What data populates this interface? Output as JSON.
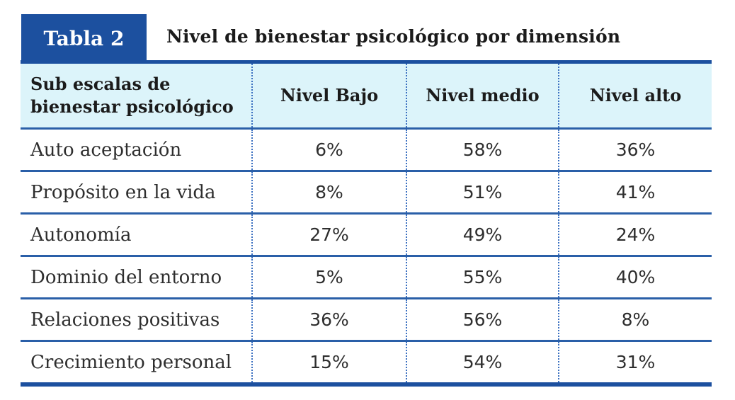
{
  "header": {
    "badge": "Tabla 2",
    "title": "Nivel de bienestar psicológico por dimensión"
  },
  "table": {
    "columns": {
      "label": "Sub escalas de bienestar psicológico",
      "low": "Nivel Bajo",
      "mid": "Nivel medio",
      "high": "Nivel alto"
    },
    "rows": [
      {
        "label": "Auto aceptación",
        "low": "6%",
        "mid": "58%",
        "high": "36%"
      },
      {
        "label": "Propósito en la vida",
        "low": "8%",
        "mid": "51%",
        "high": "41%"
      },
      {
        "label": "Autonomía",
        "low": "27%",
        "mid": "49%",
        "high": "24%"
      },
      {
        "label": "Dominio del entorno",
        "low": "5%",
        "mid": "55%",
        "high": "40%"
      },
      {
        "label": "Relaciones positivas",
        "low": "36%",
        "mid": "56%",
        "high": "8%"
      },
      {
        "label": "Crecimiento personal",
        "low": "15%",
        "mid": "54%",
        "high": "31%"
      }
    ]
  },
  "colors": {
    "accent_blue": "#1c509f",
    "row_line_blue": "#2a5fa8",
    "dotted_line_blue": "#3a6fc0",
    "header_bg": "#dcf4fa",
    "text_dark": "#1b1b1b"
  },
  "chart_data": {
    "type": "table",
    "title": "Nivel de bienestar psicológico por dimensión",
    "row_header": "Sub escalas de bienestar psicológico",
    "categories": [
      "Auto aceptación",
      "Propósito en la vida",
      "Autonomía",
      "Dominio del entorno",
      "Relaciones positivas",
      "Crecimiento personal"
    ],
    "series": [
      {
        "name": "Nivel Bajo",
        "values": [
          6,
          8,
          27,
          5,
          36,
          15
        ]
      },
      {
        "name": "Nivel medio",
        "values": [
          58,
          51,
          49,
          55,
          56,
          54
        ]
      },
      {
        "name": "Nivel alto",
        "values": [
          36,
          41,
          24,
          40,
          8,
          31
        ]
      }
    ],
    "unit": "%"
  }
}
